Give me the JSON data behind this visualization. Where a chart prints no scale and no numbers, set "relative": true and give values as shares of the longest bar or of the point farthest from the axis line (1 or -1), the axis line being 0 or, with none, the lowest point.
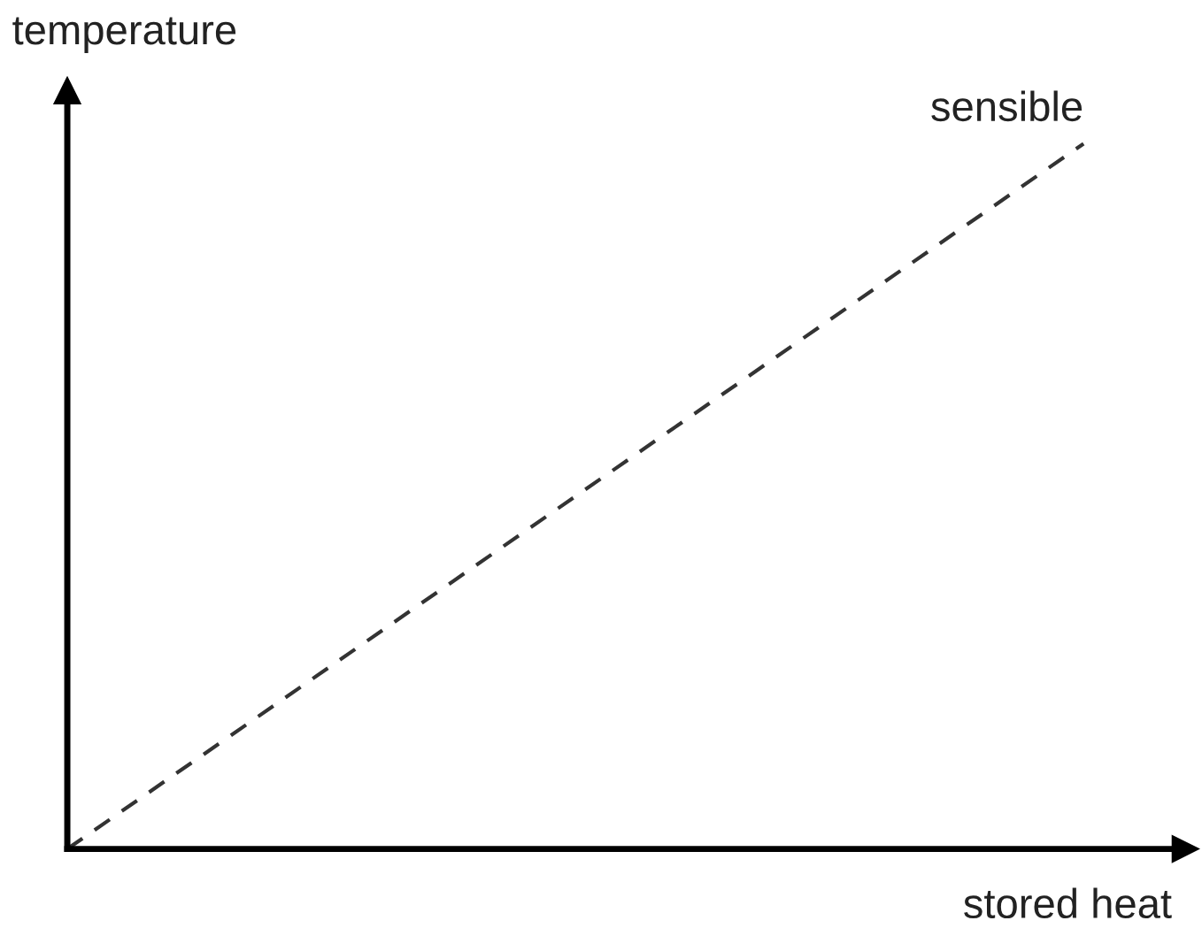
{
  "chart_data": {
    "type": "line",
    "relative": true,
    "xlabel": "stored heat",
    "ylabel": "temperature",
    "categories": [
      null,
      null
    ],
    "series": [
      {
        "name": "sensible",
        "color": "#333333",
        "values": [
          0,
          1
        ]
      }
    ],
    "line_style": "dashed"
  }
}
